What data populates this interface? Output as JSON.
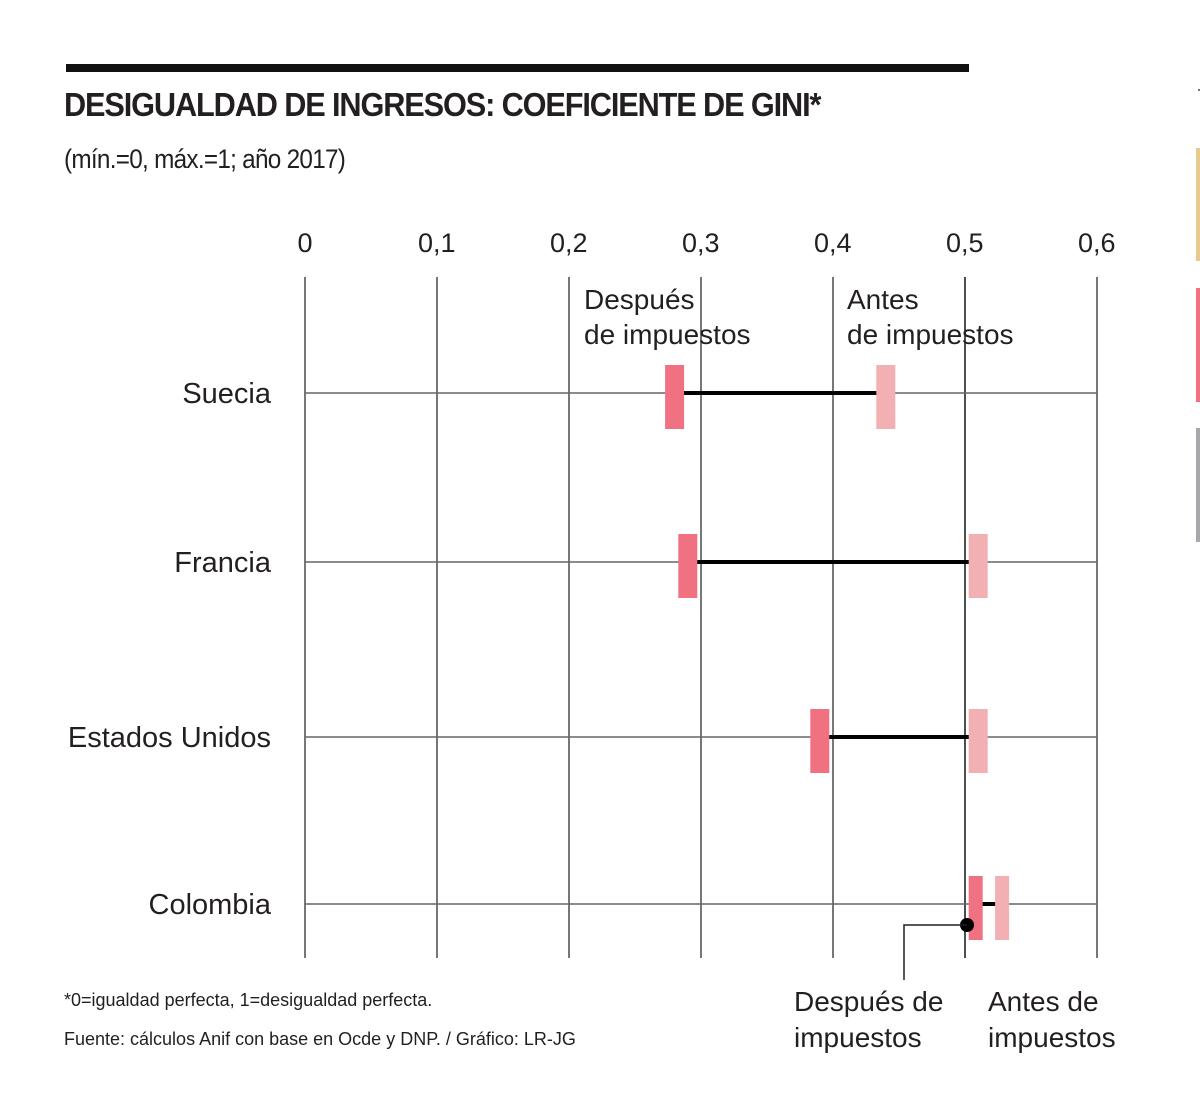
{
  "header": {
    "title": "DESIGUALDAD DE INGRESOS: COEFICIENTE DE GINI*",
    "subtitle": "(mín.=0, máx.=1; año 2017)"
  },
  "footer": {
    "note": "*0=igualdad perfecta, 1=desigualdad perfecta.",
    "source": "Fuente: cálculos Anif con base en Ocde y DNP. / Gráfico: LR-JG"
  },
  "colors": {
    "after_tax": "#F07282",
    "before_tax": "#F2B0B3",
    "connector": "#000000",
    "grid": "#7a7a7a",
    "side_strips": [
      "#E8C98E",
      "#F07282",
      "#A8A7AC"
    ]
  },
  "chart_data": {
    "type": "dumbbell",
    "title": "DESIGUALDAD DE INGRESOS: COEFICIENTE DE GINI*",
    "subtitle": "(mín.=0, máx.=1; año 2017)",
    "xlabel": "",
    "ylabel": "",
    "xlim": [
      0,
      0.6
    ],
    "x_ticks": [
      0,
      0.1,
      0.2,
      0.3,
      0.4,
      0.5,
      0.6
    ],
    "x_tick_labels": [
      "0",
      "0,1",
      "0,2",
      "0,3",
      "0,4",
      "0,5",
      "0,6"
    ],
    "grid": true,
    "categories": [
      "Suecia",
      "Francia",
      "Estados Unidos",
      "Colombia"
    ],
    "series": [
      {
        "name": "Después de impuestos",
        "values": [
          0.28,
          0.29,
          0.39,
          0.51
        ]
      },
      {
        "name": "Antes de impuestos",
        "values": [
          0.44,
          0.51,
          0.51,
          0.53
        ]
      }
    ],
    "annotations": {
      "top_after": [
        "Después",
        "de impuestos"
      ],
      "top_before": [
        "Antes",
        "de impuestos"
      ],
      "bottom_after": [
        "Después de",
        "impuestos"
      ],
      "bottom_before": [
        "Antes de",
        "impuestos"
      ]
    }
  }
}
